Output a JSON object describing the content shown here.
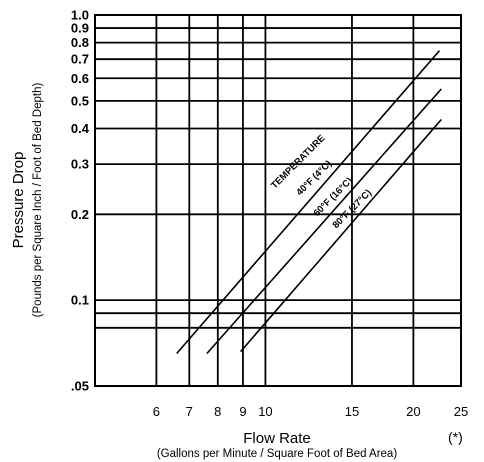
{
  "chart_data": {
    "type": "line",
    "xlabel": "Flow Rate",
    "xlabel_sub": "(Gallons per Minute / Square Foot of Bed Area)",
    "ylabel": "Pressure Drop",
    "ylabel_sub": "(Pounds per Square Inch / Foot of Bed Depth)",
    "x_scale": "log",
    "y_scale": "log",
    "xlim": [
      4.5,
      25
    ],
    "ylim": [
      0.05,
      1.0
    ],
    "x_ticks": [
      6,
      7,
      8,
      9,
      10,
      15,
      20,
      25
    ],
    "x_tick_labels": [
      "6",
      "7",
      "8",
      "9",
      "10",
      "15",
      "20",
      "25"
    ],
    "y_ticks": [
      1.0,
      0.9,
      0.8,
      0.7,
      0.6,
      0.5,
      0.4,
      0.3,
      0.2,
      0.1,
      0.05
    ],
    "y_tick_labels": [
      "1.0",
      "0.9",
      "0.8",
      "0.7",
      "0.6",
      "0.5",
      "0.4",
      "0.3",
      "0.2",
      "0.1",
      ".05"
    ],
    "y_extra_gridlines": [
      0.09,
      0.08
    ],
    "grid": true,
    "annotation_heading": "TEMPERATURE",
    "series": [
      {
        "name": "40°F (4°C)",
        "points": [
          [
            6.6,
            0.065
          ],
          [
            22.6,
            0.75
          ]
        ]
      },
      {
        "name": "60°F (16°C)",
        "points": [
          [
            7.6,
            0.065
          ],
          [
            22.8,
            0.55
          ]
        ]
      },
      {
        "name": "80°F (27°C)",
        "points": [
          [
            8.9,
            0.066
          ],
          [
            22.8,
            0.43
          ]
        ]
      }
    ],
    "footnote": "(*)"
  }
}
